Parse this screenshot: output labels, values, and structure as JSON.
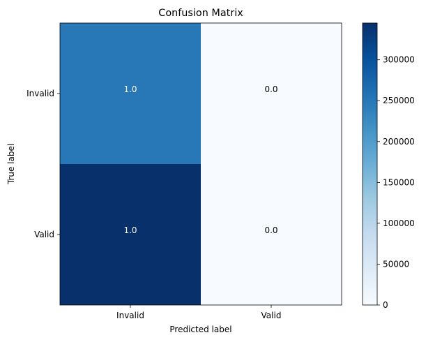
{
  "chart_data": {
    "type": "heatmap",
    "title": "Confusion Matrix",
    "xlabel": "Predicted label",
    "ylabel": "True label",
    "x_categories": [
      "Invalid",
      "Valid"
    ],
    "y_categories": [
      "Invalid",
      "Valid"
    ],
    "cell_labels": [
      [
        "1.0",
        "0.0"
      ],
      [
        "1.0",
        "0.0"
      ]
    ],
    "cell_values": [
      [
        250000,
        0
      ],
      [
        345000,
        0
      ]
    ],
    "colormap": "Blues",
    "colorbar": {
      "vmin": 0,
      "vmax": 345000,
      "ticks": [
        0,
        50000,
        100000,
        150000,
        200000,
        250000,
        300000
      ],
      "tick_labels": [
        "0",
        "50000",
        "100000",
        "150000",
        "200000",
        "250000",
        "300000"
      ]
    }
  }
}
